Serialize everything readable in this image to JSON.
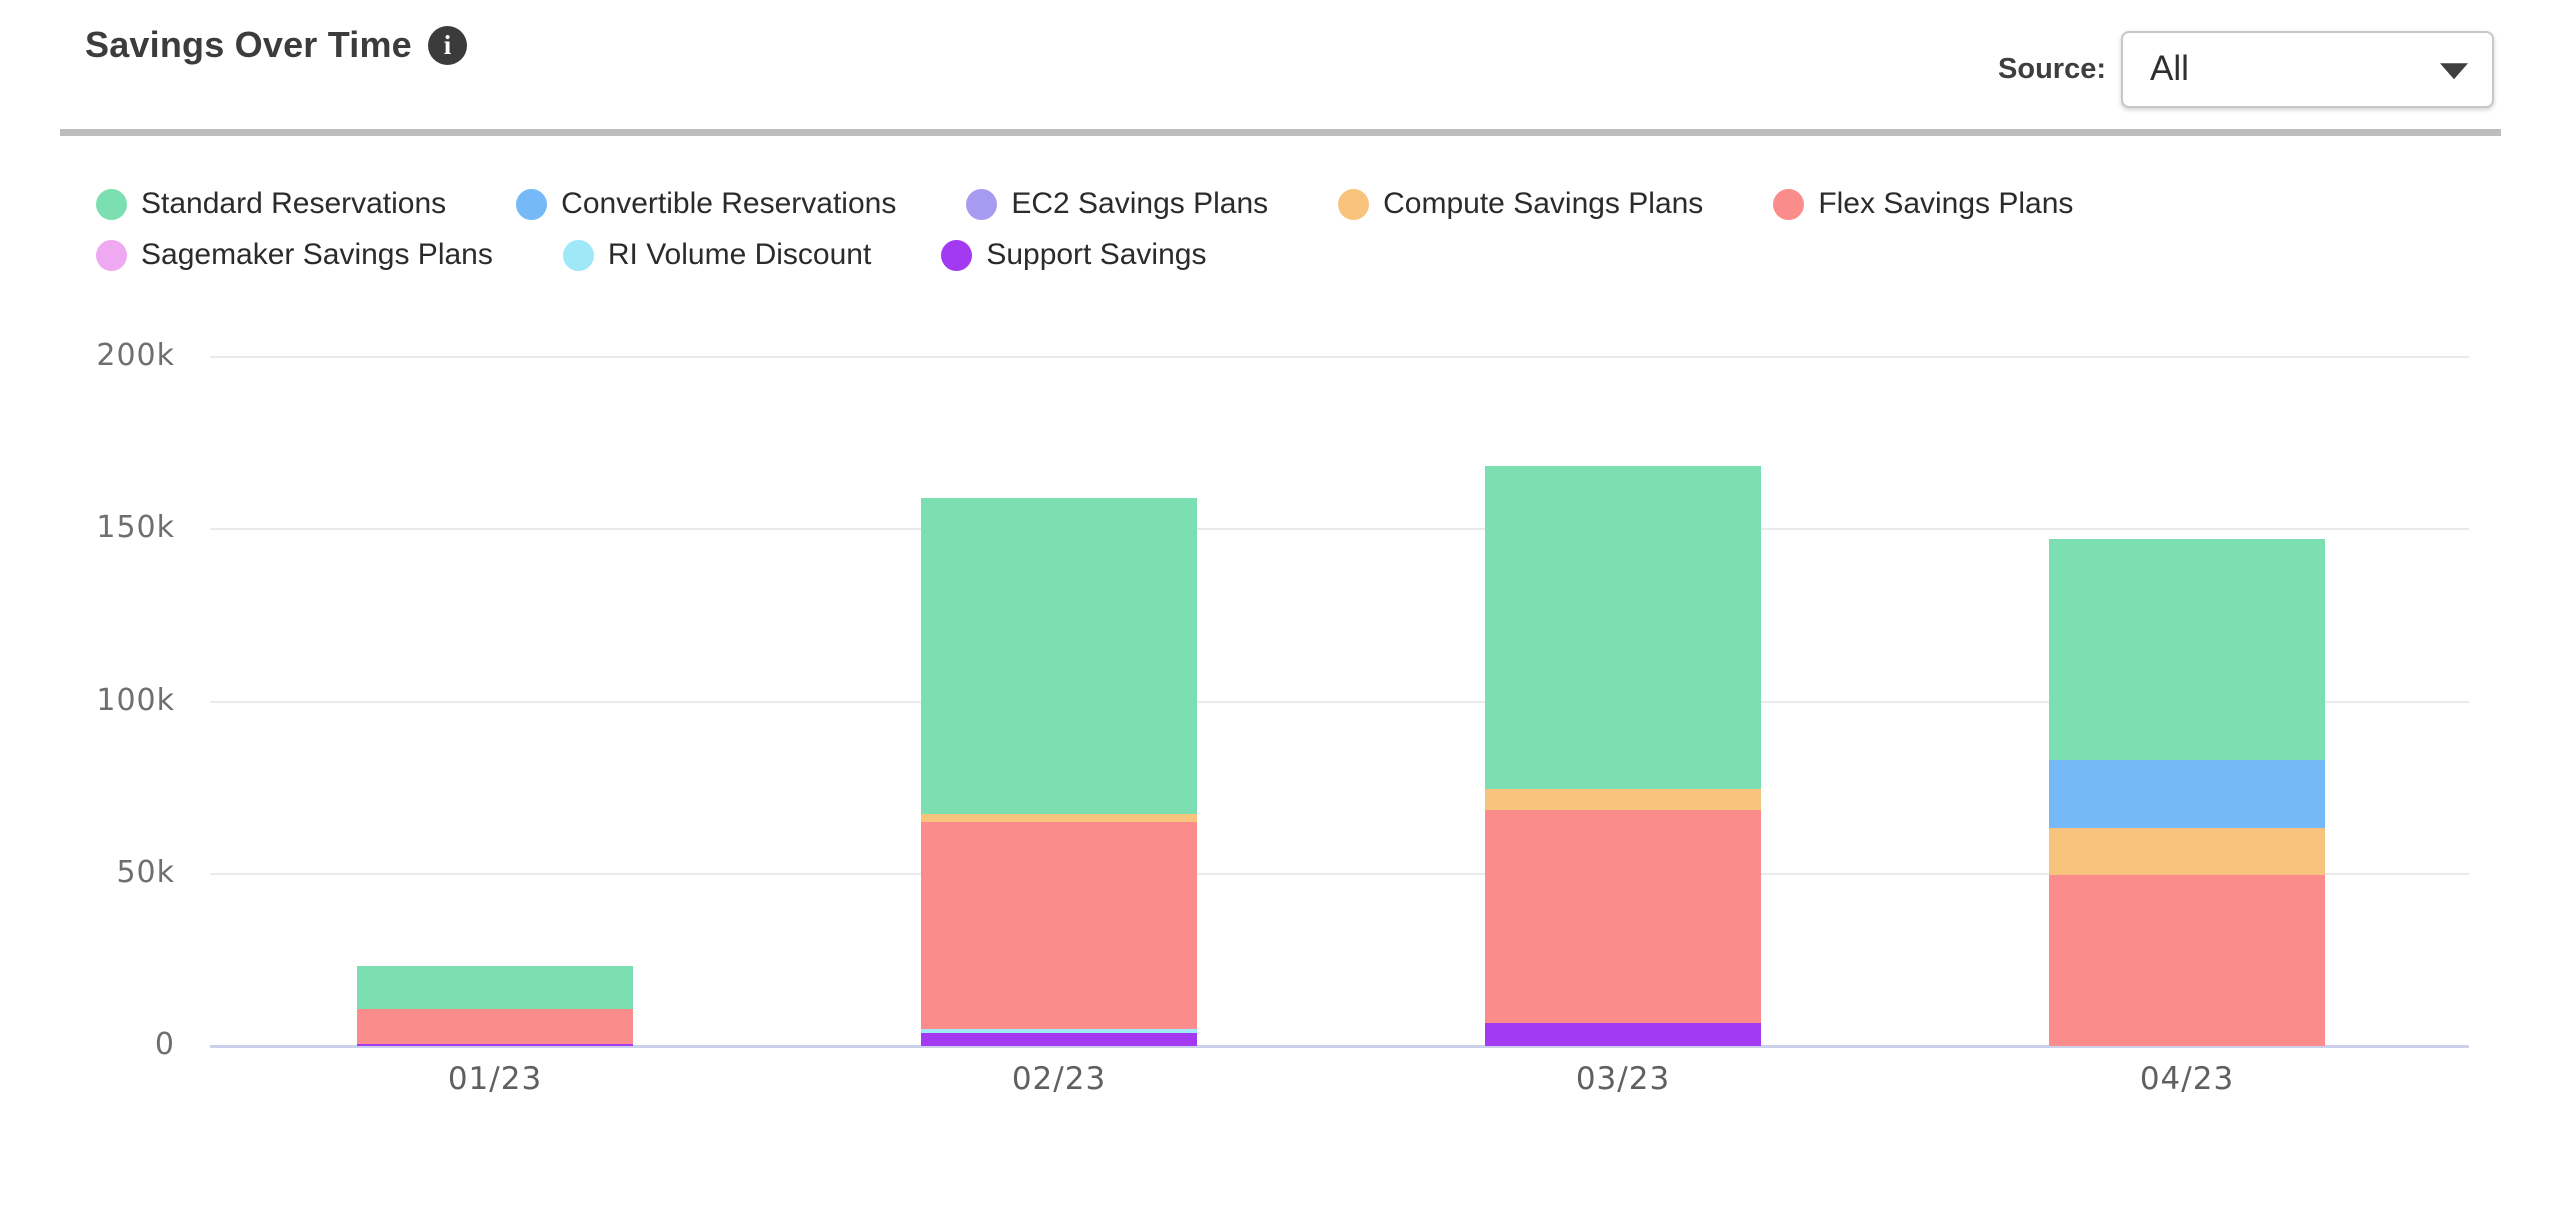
{
  "header": {
    "title": "Savings Over Time",
    "info_glyph": "i",
    "source_label": "Source:",
    "source_value": "All"
  },
  "chart_data": {
    "type": "bar",
    "stacked": true,
    "title": "Savings Over Time",
    "xlabel": "",
    "ylabel": "",
    "categories": [
      "01/23",
      "02/23",
      "03/23",
      "04/23"
    ],
    "series": [
      {
        "name": "Standard Reservations",
        "color": "#7bdfb2",
        "values": [
          12500,
          91800,
          93800,
          64200
        ]
      },
      {
        "name": "Convertible Reservations",
        "color": "#75b9f8",
        "values": [
          0,
          0,
          0,
          19600
        ]
      },
      {
        "name": "EC2 Savings Plans",
        "color": "#a69bf0",
        "values": [
          0,
          0,
          0,
          0
        ]
      },
      {
        "name": "Compute Savings Plans",
        "color": "#f8c47d",
        "values": [
          0,
          2300,
          6100,
          13800
        ]
      },
      {
        "name": "Flex Savings Plans",
        "color": "#fb8c8c",
        "values": [
          10200,
          60000,
          61800,
          49600
        ]
      },
      {
        "name": "Sagemaker Savings Plans",
        "color": "#efa9f0",
        "values": [
          0,
          0,
          0,
          0
        ]
      },
      {
        "name": "RI Volume Discount",
        "color": "#9fe8f7",
        "values": [
          0,
          1000,
          0,
          0
        ]
      },
      {
        "name": "Support Savings",
        "color": "#a439f2",
        "values": [
          600,
          3900,
          6700,
          0
        ]
      }
    ],
    "stack_order": "last-series-at-bottom",
    "ylim": [
      0,
      200000
    ],
    "yticks": [
      {
        "value": 0,
        "label": "0"
      },
      {
        "value": 50000,
        "label": "50k"
      },
      {
        "value": 100000,
        "label": "100k"
      },
      {
        "value": 150000,
        "label": "150k"
      },
      {
        "value": 200000,
        "label": "200k"
      }
    ],
    "grid": true,
    "legend_position": "top",
    "legend_rows": [
      5,
      3
    ]
  }
}
